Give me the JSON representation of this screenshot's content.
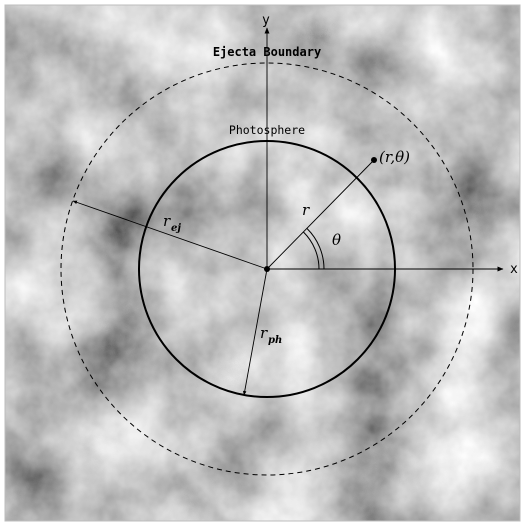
{
  "diagram": {
    "labels": {
      "ejecta_boundary": "Ejecta Boundary",
      "photosphere": "Photosphere",
      "x_axis": "x",
      "y_axis": "y",
      "point": "(r,θ)",
      "r": "r",
      "theta": "θ",
      "r_ej": "r",
      "r_ej_sub": "ej",
      "r_ph": "r",
      "r_ph_sub": "ph"
    },
    "colors": {
      "background_light": "#c9c9c9",
      "background_dark": "#6e6e6e",
      "line": "#000000"
    },
    "styles": {
      "photosphere": "solid",
      "ejecta_boundary": "dashed"
    }
  }
}
